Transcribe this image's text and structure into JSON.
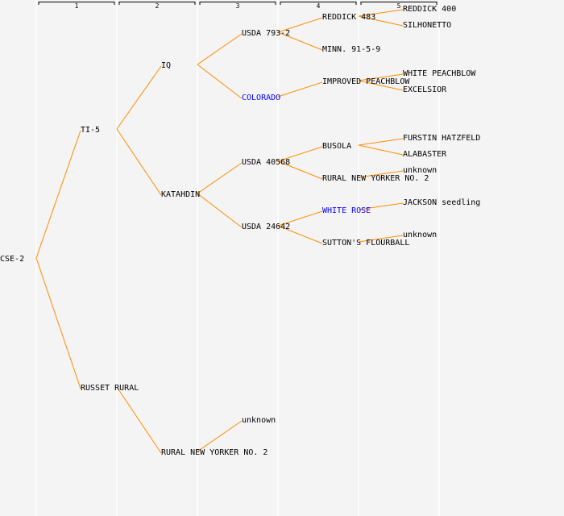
{
  "colors": {
    "background": "#f4f4f4",
    "link": "#ff8c00",
    "text": "#000000",
    "highlight": "#0000ff",
    "divider": "#ffffff"
  },
  "generations": [
    "1",
    "2",
    "3",
    "4",
    "5"
  ],
  "tree": {
    "label": "CSE-2",
    "children": [
      {
        "label": "TI-5",
        "children": [
          {
            "label": "IQ",
            "children": [
              {
                "label": "USDA 793-2",
                "children": [
                  {
                    "label": "REDDICK 483",
                    "children": [
                      {
                        "label": "REDDICK 400"
                      },
                      {
                        "label": "SILHONETTO"
                      }
                    ]
                  },
                  {
                    "label": "MINN. 91-5-9"
                  }
                ]
              },
              {
                "label": "COLORADO",
                "highlight": true,
                "children": [
                  {
                    "label": "IMPROVED PEACHBLOW",
                    "children": [
                      {
                        "label": "WHITE PEACHBLOW"
                      },
                      {
                        "label": "EXCELSIOR"
                      }
                    ]
                  },
                  null
                ]
              }
            ]
          },
          {
            "label": "KATAHDIN",
            "children": [
              {
                "label": "USDA 40568",
                "children": [
                  {
                    "label": "BUSOLA",
                    "children": [
                      {
                        "label": "FURSTIN HATZFELD"
                      },
                      {
                        "label": "ALABASTER"
                      }
                    ]
                  },
                  {
                    "label": "RURAL NEW YORKER NO. 2",
                    "children": [
                      {
                        "label": "unknown"
                      },
                      null
                    ]
                  }
                ]
              },
              {
                "label": "USDA 24642",
                "children": [
                  {
                    "label": "WHITE ROSE",
                    "highlight": true,
                    "children": [
                      {
                        "label": "JACKSON seedling"
                      },
                      null
                    ]
                  },
                  {
                    "label": "SUTTON'S FLOURBALL",
                    "children": [
                      {
                        "label": "unknown"
                      },
                      null
                    ]
                  }
                ]
              }
            ]
          }
        ]
      },
      {
        "label": "RUSSET RURAL",
        "children": [
          null,
          {
            "label": "RURAL NEW YORKER NO. 2",
            "children": [
              {
                "label": "unknown"
              },
              null
            ]
          }
        ]
      }
    ]
  }
}
